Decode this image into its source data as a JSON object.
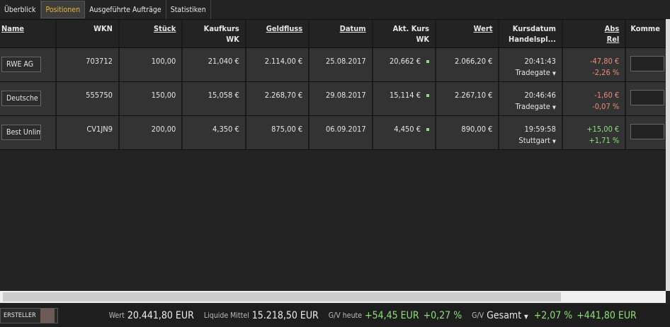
{
  "tabs": [
    "Überblick",
    "Positionen",
    "Ausgeführte Aufträge",
    "Statistiken"
  ],
  "active_tab": "Positionen",
  "columns": [
    {
      "l1": "Name",
      "l2": "",
      "sortable": true
    },
    {
      "l1": "WKN",
      "l2": "",
      "sortable": false
    },
    {
      "l1": "Stück",
      "l2": "",
      "sortable": true
    },
    {
      "l1": "Kaufkurs",
      "l2": "WK",
      "sortable": false
    },
    {
      "l1": "Geldfluss",
      "l2": "",
      "sortable": true
    },
    {
      "l1": "Datum",
      "l2": "",
      "sortable": true
    },
    {
      "l1": "Akt. Kurs",
      "l2": "WK",
      "sortable": false
    },
    {
      "l1": "Wert",
      "l2": "",
      "sortable": true
    },
    {
      "l1": "Kursdatum",
      "l2": "Handelspl...",
      "sortable": false
    },
    {
      "l1": "Abs",
      "l2": "Rel",
      "sortable": true
    },
    {
      "l1": "Komme",
      "l2": "",
      "sortable": false
    }
  ],
  "rows": [
    {
      "name": "RWE AG",
      "wkn": "703712",
      "stueck": "100,00",
      "kaufkurs": "21,040 €",
      "geldfluss": "2.114,00 €",
      "datum": "25.08.2017",
      "kurs": "20,662 €",
      "wert": "2.066,20 €",
      "zeit": "20:41:43",
      "platz": "Tradegate",
      "abs": "-47,80 €",
      "rel": "-2,26 %",
      "trend": "neg"
    },
    {
      "name": "Deutsche Telekom",
      "wkn": "555750",
      "stueck": "150,00",
      "kaufkurs": "15,058 €",
      "geldfluss": "2.268,70 €",
      "datum": "29.08.2017",
      "kurs": "15,114 €",
      "wert": "2.267,10 €",
      "zeit": "20:46:46",
      "platz": "Tradegate",
      "abs": "-1,60 €",
      "rel": "-0,07 %",
      "trend": "neg"
    },
    {
      "name": "Best Unlimited",
      "wkn": "CV1JN9",
      "stueck": "200,00",
      "kaufkurs": "4,350 €",
      "geldfluss": "875,00 €",
      "datum": "06.09.2017",
      "kurs": "4,450 €",
      "wert": "890,00 €",
      "zeit": "19:59:58",
      "platz": "Stuttgart",
      "abs": "+15,00 €",
      "rel": "+1,71 %",
      "trend": "pos"
    }
  ],
  "footer": {
    "ersteller": "ERSTELLER",
    "wert_label": "Wert",
    "wert": "20.441,80 EUR",
    "liquide_label": "Liquide Mittel",
    "liquide": "15.218,50 EUR",
    "gv_heute_label": "G/V heute",
    "gv_heute_abs": "+54,45 EUR",
    "gv_heute_rel": "+0,27 %",
    "gv_label": "G/V",
    "gv_select": "Gesamt",
    "gv_rel": "+2,07 %",
    "gv_abs": "+441,80 EUR"
  },
  "colors": {
    "accent": "#e8b632",
    "positive": "#8fe07a",
    "negative": "#ef8a7a"
  }
}
